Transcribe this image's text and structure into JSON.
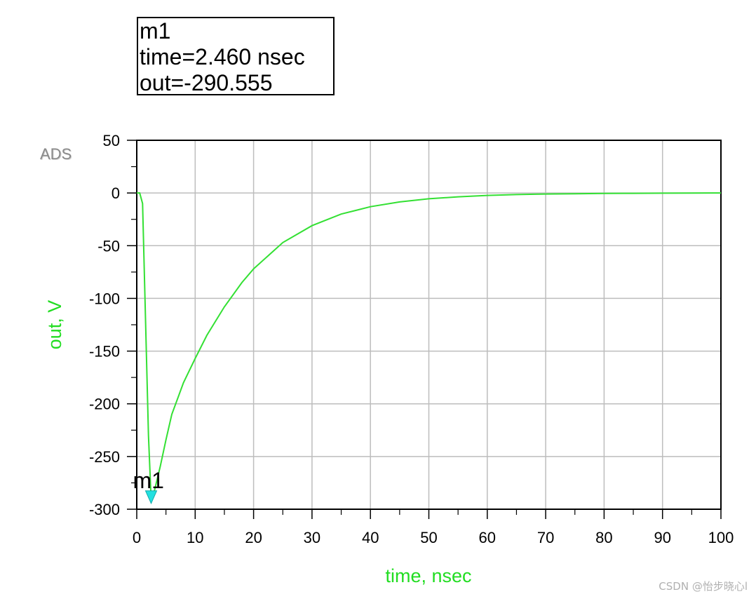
{
  "marker": {
    "name": "m1",
    "time_line": "time=2.460 nsec",
    "out_line": "out=-290.555",
    "time": 2.46,
    "out": -290.555,
    "color": "#22e0e0"
  },
  "logo": "ADS",
  "watermark": "CSDN @怡步晓心l",
  "chart_data": {
    "type": "line",
    "xlabel": "time, nsec",
    "ylabel": "out, V",
    "xlim": [
      0,
      100
    ],
    "ylim": [
      -300,
      50
    ],
    "x_ticks": [
      "0",
      "10",
      "20",
      "30",
      "40",
      "50",
      "60",
      "70",
      "80",
      "90",
      "100"
    ],
    "y_ticks": [
      "50",
      "0",
      "-50",
      "-100",
      "-150",
      "-200",
      "-250",
      "-300"
    ],
    "grid": true,
    "line_color": "#33e033",
    "label_color": "#22dd22",
    "series": [
      {
        "x": [
          0,
          0.5,
          1,
          1.5,
          2,
          2.46,
          3,
          4,
          5,
          6,
          8,
          10,
          12,
          15,
          18,
          20,
          25,
          30,
          35,
          40,
          45,
          50,
          55,
          60,
          65,
          70,
          75,
          80,
          85,
          90,
          95,
          100
        ],
        "y": [
          0,
          0,
          -10,
          -120,
          -230,
          -290.6,
          -283,
          -260,
          -234,
          -210,
          -180,
          -157,
          -135,
          -108,
          -85,
          -72,
          -47,
          -31,
          -20,
          -13,
          -8.5,
          -5.5,
          -3.6,
          -2.3,
          -1.5,
          -1,
          -0.7,
          -0.4,
          -0.3,
          -0.2,
          -0.1,
          0
        ]
      }
    ]
  }
}
